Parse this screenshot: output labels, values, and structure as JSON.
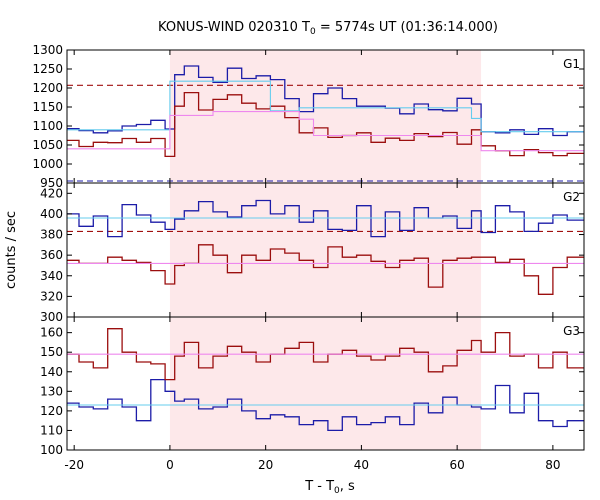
{
  "title_prefix": "KONUS-WIND 020310 T",
  "title_sub": "0",
  "title_suffix": " = 5774s UT (01:36:14.000)",
  "xlabel_prefix": "T - T",
  "xlabel_sub": "0",
  "xlabel_suffix": ", s",
  "ylabel": "counts / sec",
  "chart_data": {
    "type": "line",
    "x_range": [
      -21.5,
      86.5
    ],
    "x_ticks": [
      -20,
      0,
      20,
      40,
      60,
      80
    ],
    "x_tick_labels": [
      "-20",
      "0",
      "20",
      "40",
      "60",
      "80"
    ],
    "shaded_interval": [
      0,
      65
    ],
    "colors": {
      "blue": "#1c1ca8",
      "red": "#9b0e0e",
      "cyan": "#66ccee",
      "pink": "#ee88ee",
      "shade": "#fde8ea",
      "dashed_red": "#a01010",
      "dashed_blue": "#1c1ca8"
    },
    "panels": [
      {
        "label": "G1",
        "ylim": [
          950,
          1300
        ],
        "yticks": [
          950,
          1000,
          1050,
          1100,
          1150,
          1200,
          1250,
          1300
        ],
        "ytick_labels": [
          "950",
          "1000",
          "1050",
          "1100",
          "1150",
          "1200",
          "1250",
          "1300"
        ],
        "hlines": [
          {
            "y": 1207,
            "color": "dashed_red",
            "dashed": true
          },
          {
            "y": 950,
            "color": "dashed_blue",
            "dashed": true
          }
        ],
        "series": [
          {
            "color": "blue",
            "step": true,
            "x": [
              -21.5,
              -19,
              -16,
              -13,
              -10,
              -7,
              -4,
              -1,
              0,
              1,
              3,
              6,
              9,
              12,
              15,
              18,
              21,
              24,
              27,
              30,
              33,
              36,
              39,
              42,
              45,
              48,
              51,
              54,
              57,
              60,
              63,
              65,
              68,
              71,
              74,
              77,
              80,
              83,
              86.5
            ],
            "y": [
              1093,
              1088,
              1082,
              1087,
              1100,
              1104,
              1115,
              1092,
              1092,
              1235,
              1258,
              1228,
              1215,
              1252,
              1225,
              1232,
              1222,
              1172,
              1138,
              1185,
              1200,
              1172,
              1152,
              1152,
              1147,
              1132,
              1158,
              1143,
              1140,
              1173,
              1158,
              1085,
              1082,
              1090,
              1078,
              1093,
              1075,
              1085,
              1085
            ]
          },
          {
            "color": "red",
            "step": true,
            "x": [
              -21.5,
              -19,
              -16,
              -13,
              -10,
              -7,
              -4,
              -1,
              0,
              1,
              3,
              6,
              9,
              12,
              15,
              18,
              21,
              24,
              27,
              30,
              33,
              36,
              39,
              42,
              45,
              48,
              51,
              54,
              57,
              60,
              63,
              65,
              68,
              71,
              74,
              77,
              80,
              83,
              86.5
            ],
            "y": [
              1062,
              1046,
              1057,
              1056,
              1067,
              1057,
              1067,
              1020,
              1020,
              1152,
              1188,
              1142,
              1170,
              1182,
              1160,
              1145,
              1152,
              1122,
              1082,
              1095,
              1070,
              1075,
              1082,
              1057,
              1068,
              1062,
              1080,
              1072,
              1083,
              1052,
              1090,
              1048,
              1035,
              1022,
              1038,
              1030,
              1022,
              1028,
              1028
            ]
          },
          {
            "color": "cyan",
            "step": false,
            "x": [
              -21.5,
              0,
              0,
              21,
              21,
              27,
              27,
              63,
              63,
              65,
              65,
              86.5
            ],
            "y": [
              1090,
              1090,
              1218,
              1218,
              1140,
              1140,
              1148,
              1148,
              1120,
              1120,
              1085,
              1085
            ]
          },
          {
            "color": "pink",
            "step": false,
            "x": [
              -21.5,
              0,
              0,
              9,
              9,
              27,
              27,
              30,
              30,
              65,
              65,
              86.5
            ],
            "y": [
              1040,
              1040,
              1128,
              1128,
              1138,
              1138,
              1118,
              1118,
              1075,
              1075,
              1035,
              1035
            ]
          }
        ]
      },
      {
        "label": "G2",
        "ylim": [
          300,
          430
        ],
        "yticks": [
          300,
          320,
          340,
          360,
          380,
          400,
          420
        ],
        "ytick_labels": [
          "300",
          "320",
          "340",
          "360",
          "380",
          "400",
          "420"
        ],
        "hlines": [
          {
            "y": 383,
            "color": "dashed_red",
            "dashed": true
          }
        ],
        "series": [
          {
            "color": "blue",
            "step": true,
            "x": [
              -21.5,
              -19,
              -16,
              -13,
              -10,
              -7,
              -4,
              -1,
              0,
              1,
              3,
              6,
              9,
              12,
              15,
              18,
              21,
              24,
              27,
              30,
              33,
              36,
              39,
              42,
              45,
              48,
              51,
              54,
              57,
              60,
              63,
              65,
              68,
              71,
              74,
              77,
              80,
              83,
              86.5
            ],
            "y": [
              400,
              388,
              398,
              378,
              409,
              399,
              392,
              385,
              385,
              395,
              403,
              412,
              402,
              397,
              408,
              413,
              400,
              408,
              392,
              403,
              385,
              384,
              408,
              378,
              402,
              384,
              406,
              396,
              398,
              386,
              403,
              382,
              408,
              402,
              383,
              391,
              399,
              394,
              394
            ]
          },
          {
            "color": "red",
            "step": true,
            "x": [
              -21.5,
              -19,
              -16,
              -13,
              -10,
              -7,
              -4,
              -1,
              0,
              1,
              3,
              6,
              9,
              12,
              15,
              18,
              21,
              24,
              27,
              30,
              33,
              36,
              39,
              42,
              45,
              48,
              51,
              54,
              57,
              60,
              63,
              65,
              68,
              71,
              74,
              77,
              80,
              83,
              86.5
            ],
            "y": [
              355,
              352,
              352,
              358,
              355,
              353,
              345,
              332,
              332,
              350,
              352,
              370,
              360,
              343,
              360,
              355,
              366,
              362,
              355,
              348,
              368,
              358,
              360,
              354,
              348,
              355,
              357,
              329,
              355,
              357,
              358,
              358,
              353,
              356,
              340,
              322,
              348,
              358,
              358
            ]
          },
          {
            "color": "cyan",
            "step": false,
            "x": [
              -21.5,
              86.5
            ],
            "y": [
              396,
              396
            ]
          },
          {
            "color": "pink",
            "step": false,
            "x": [
              -21.5,
              86.5
            ],
            "y": [
              352,
              352
            ]
          }
        ]
      },
      {
        "label": "G3",
        "ylim": [
          100,
          168
        ],
        "yticks": [
          100,
          110,
          120,
          130,
          140,
          150,
          160
        ],
        "ytick_labels": [
          "100",
          "110",
          "120",
          "130",
          "140",
          "150",
          "160"
        ],
        "hlines": [],
        "series": [
          {
            "color": "blue",
            "step": true,
            "x": [
              -21.5,
              -19,
              -16,
              -13,
              -10,
              -7,
              -4,
              -1,
              0,
              1,
              3,
              6,
              9,
              12,
              15,
              18,
              21,
              24,
              27,
              30,
              33,
              36,
              39,
              42,
              45,
              48,
              51,
              54,
              57,
              60,
              63,
              65,
              68,
              71,
              74,
              77,
              80,
              83,
              86.5
            ],
            "y": [
              124,
              122,
              121,
              126,
              122,
              115,
              136,
              130,
              130,
              125,
              126,
              121,
              122,
              126,
              120,
              116,
              118,
              117,
              113,
              115,
              110,
              117,
              113,
              114,
              117,
              113,
              124,
              119,
              127,
              123,
              122,
              121,
              133,
              119,
              129,
              115,
              112,
              115,
              115
            ]
          },
          {
            "color": "red",
            "step": true,
            "x": [
              -21.5,
              -19,
              -16,
              -13,
              -10,
              -7,
              -4,
              -1,
              0,
              1,
              3,
              6,
              9,
              12,
              15,
              18,
              21,
              24,
              27,
              30,
              33,
              36,
              39,
              42,
              45,
              48,
              51,
              54,
              57,
              60,
              63,
              65,
              68,
              71,
              74,
              77,
              80,
              83,
              86.5
            ],
            "y": [
              149,
              145,
              142,
              162,
              150,
              145,
              144,
              136,
              136,
              148,
              155,
              142,
              148,
              153,
              150,
              145,
              149,
              152,
              155,
              145,
              149,
              151,
              148,
              146,
              148,
              152,
              150,
              140,
              143,
              151,
              156,
              150,
              160,
              148,
              149,
              142,
              150,
              142,
              142
            ]
          },
          {
            "color": "cyan",
            "step": false,
            "x": [
              -21.5,
              86.5
            ],
            "y": [
              123,
              123
            ]
          },
          {
            "color": "pink",
            "step": false,
            "x": [
              -21.5,
              86.5
            ],
            "y": [
              149,
              149
            ]
          }
        ]
      }
    ]
  }
}
